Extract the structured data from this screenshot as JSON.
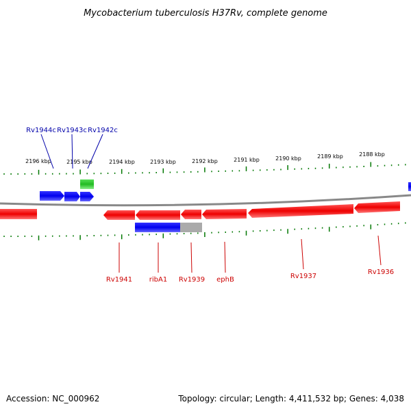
{
  "title": "Mycobacterium tuberculosis H37Rv, complete genome",
  "footer": {
    "accession": "Accession: NC_000962",
    "topology": "Topology: circular; Length: 4,411,532 bp; Genes: 4,038"
  },
  "colors": {
    "forward_gene": "#0000ee",
    "reverse_gene": "#ee0000",
    "rna_gene": "#33cc33",
    "grey_feature": "#aaaaaa",
    "backbone": "#888888",
    "tick": "#007700",
    "top_label": "#0000aa",
    "bottom_label": "#cc0000"
  },
  "scale_labels": [
    "2196 kbp",
    "2195 kbp",
    "2194 kbp",
    "2193 kbp",
    "2192 kbp",
    "2191 kbp",
    "2190 kbp",
    "2189 kbp",
    "2188 kbp"
  ],
  "top_gene_labels": [
    "Rv1944c",
    "Rv1943c",
    "Rv1942c"
  ],
  "bottom_gene_labels": [
    "Rv1941",
    "ribA1",
    "Rv1939",
    "ephB",
    "Rv1937",
    "Rv1936"
  ]
}
